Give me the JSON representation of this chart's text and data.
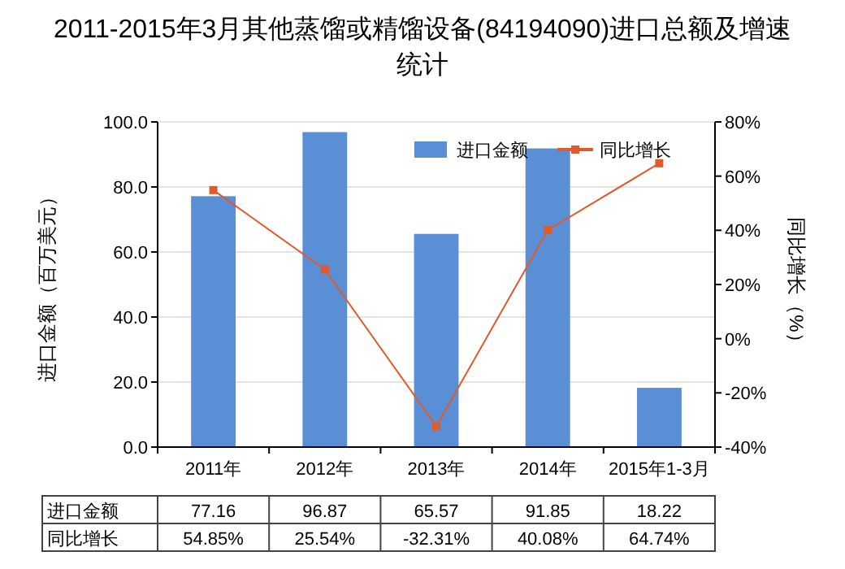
{
  "chart_data": {
    "type": "bar",
    "title": "2011-2015年3月其他蒸馏或精馏设备(84194090)进口总额及增速统计",
    "ylabel": "进口金额（百万美元）",
    "y2label": "同比增长（%）",
    "categories": [
      "2011年",
      "2012年",
      "2013年",
      "2014年",
      "2015年1-3月"
    ],
    "series": [
      {
        "name": "进口金额",
        "color": "#5a8fd5",
        "values": [
          77.16,
          96.87,
          65.57,
          91.85,
          18.22
        ],
        "value_labels": [
          "77.16",
          "96.87",
          "65.57",
          "91.85",
          "18.22"
        ]
      },
      {
        "name": "同比增长",
        "type": "line",
        "axis": "y2",
        "color": "#e05a2b",
        "values": [
          54.85,
          25.54,
          -32.31,
          40.08,
          64.74
        ],
        "value_labels": [
          "54.85%",
          "25.54%",
          "-32.31%",
          "40.08%",
          "64.74%"
        ]
      }
    ],
    "ylim": [
      0,
      100
    ],
    "yticks": [
      {
        "value": 0,
        "label": "0.0"
      },
      {
        "value": 20,
        "label": "20.0"
      },
      {
        "value": 40,
        "label": "40.0"
      },
      {
        "value": 60,
        "label": "60.0"
      },
      {
        "value": 80,
        "label": "80.0"
      },
      {
        "value": 100,
        "label": "100.0"
      }
    ],
    "y2lim": [
      -40,
      80
    ],
    "y2ticks": [
      {
        "value": -40,
        "label": "-40%"
      },
      {
        "value": -20,
        "label": "-20%"
      },
      {
        "value": 0,
        "label": "0%"
      },
      {
        "value": 20,
        "label": "20%"
      },
      {
        "value": 40,
        "label": "40%"
      },
      {
        "value": 60,
        "label": "60%"
      },
      {
        "value": 80,
        "label": "80%"
      }
    ],
    "grid": "y",
    "legend": "top right",
    "marker": "square",
    "line_style": "solid"
  }
}
